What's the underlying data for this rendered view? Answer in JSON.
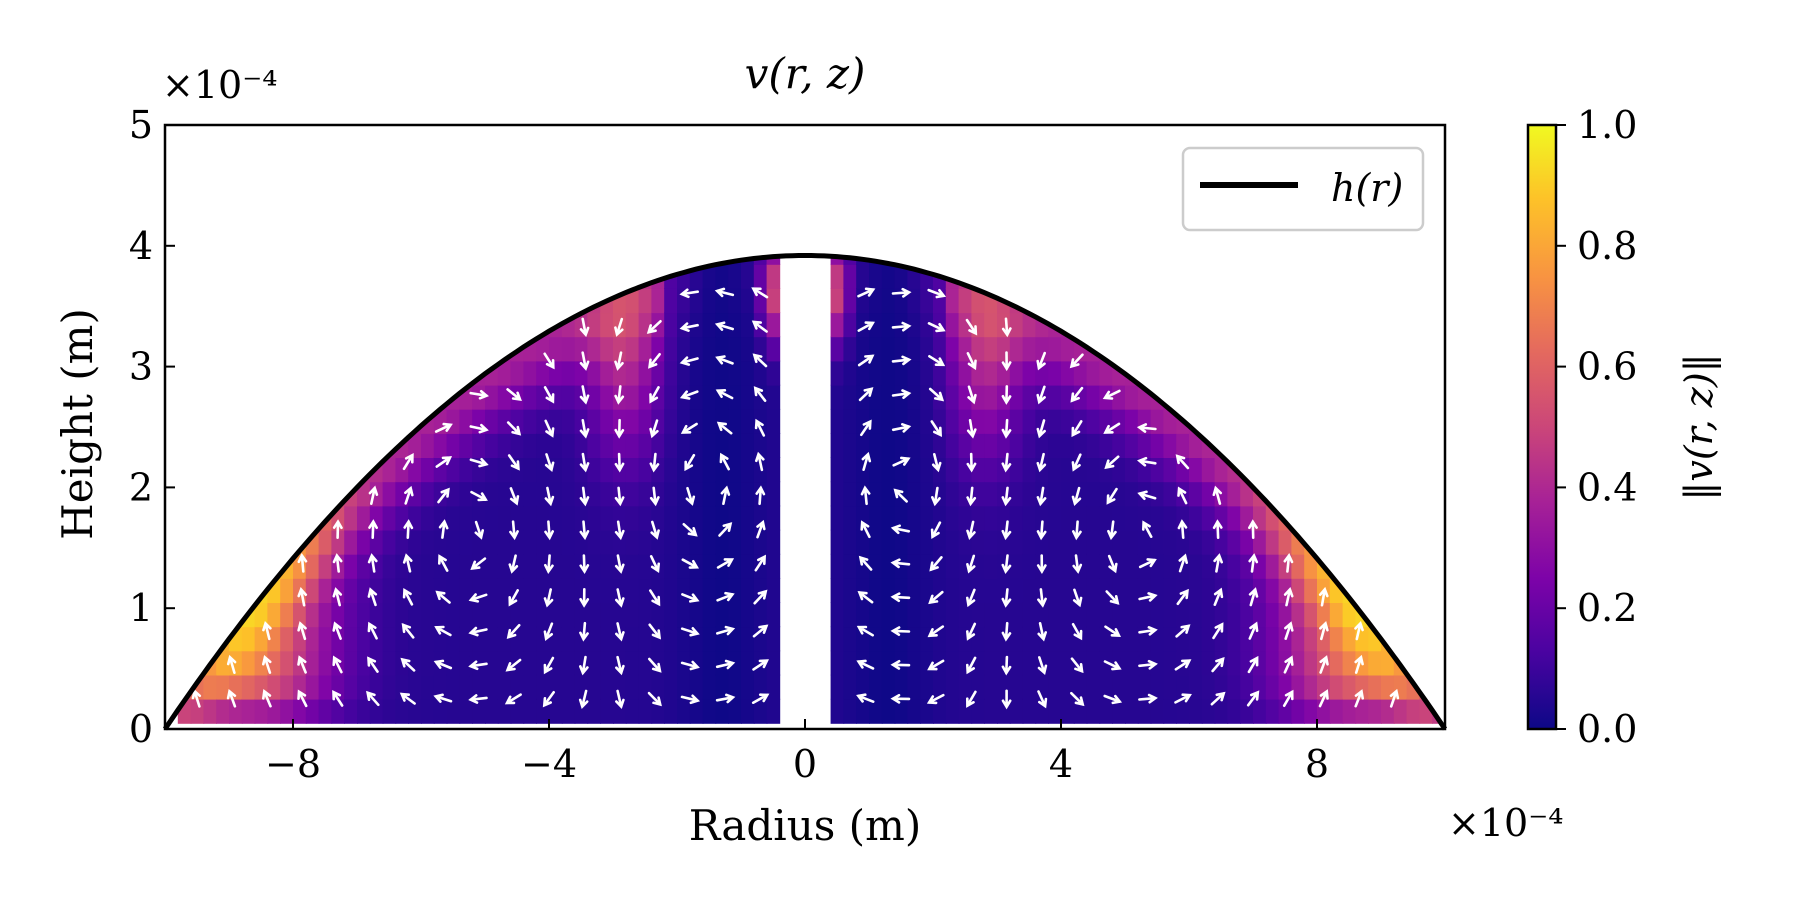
{
  "chart_data": {
    "type": "heatmap",
    "subtype": "quiver",
    "title": "v(r, z)",
    "xlabel": "Radius (m)",
    "ylabel": "Height (m)",
    "x_multiplier": "×10⁻⁴",
    "y_multiplier": "×10⁻⁴",
    "xlim": [
      -10,
      10
    ],
    "ylim": [
      0,
      5
    ],
    "xticks": [
      -8,
      -4,
      0,
      4,
      8
    ],
    "xtick_labels": [
      "−8",
      "−4",
      "0",
      "4",
      "8"
    ],
    "yticks": [
      0,
      1,
      2,
      3,
      4,
      5
    ],
    "ytick_labels": [
      "0",
      "1",
      "2",
      "3",
      "4",
      "5"
    ],
    "grid": false,
    "legend": {
      "position": "top-right",
      "entries": [
        "h(r)"
      ]
    },
    "series": [
      {
        "name": "h(r)",
        "kind": "curve",
        "shape": "parabola",
        "peak": [
          0,
          3.92
        ],
        "ends": [
          [
            -10,
            0
          ],
          [
            10,
            0
          ]
        ],
        "color": "#000000"
      }
    ],
    "field_domain": {
      "r_inner_gap": [
        -0.45,
        0.45
      ],
      "r_outer": [
        -9.8,
        9.8
      ],
      "z_bottom": 0.05
    },
    "colorbar": {
      "label": "‖v(r, z)‖",
      "range": [
        0,
        1
      ],
      "ticks": [
        0.0,
        0.2,
        0.4,
        0.6,
        0.8,
        1.0
      ],
      "tick_labels": [
        "0.0",
        "0.2",
        "0.4",
        "0.6",
        "0.8",
        "1.0"
      ],
      "colormap": "plasma"
    },
    "arrow_color": "#ffffff"
  }
}
